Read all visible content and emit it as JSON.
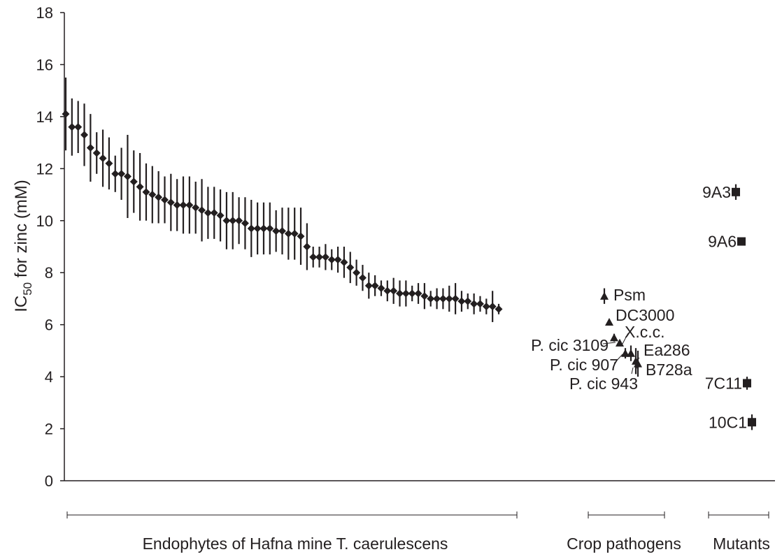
{
  "chart_data": {
    "type": "scatter",
    "ylabel": {
      "prefix": "IC",
      "sub": "50",
      "suffix": " for zinc (mM)"
    },
    "ylim": [
      0,
      18
    ],
    "yticks": [
      "0",
      "2",
      "4",
      "6",
      "8",
      "10",
      "12",
      "14",
      "16",
      "18"
    ],
    "grid": false,
    "groups": [
      {
        "label": "Endophytes of Hafna mine T. caerulescens"
      },
      {
        "label": "Crop pathogens"
      },
      {
        "label": "Mutants"
      }
    ],
    "series": [
      {
        "marker": "diamond",
        "values": [
          14.1,
          13.6,
          13.6,
          13.3,
          12.8,
          12.6,
          12.4,
          12.2,
          11.8,
          11.8,
          11.7,
          11.5,
          11.3,
          11.1,
          11.0,
          10.9,
          10.8,
          10.7,
          10.6,
          10.6,
          10.6,
          10.5,
          10.4,
          10.3,
          10.3,
          10.2,
          10.0,
          10.0,
          10.0,
          9.9,
          9.7,
          9.7,
          9.7,
          9.7,
          9.6,
          9.6,
          9.5,
          9.5,
          9.4,
          9.0,
          8.6,
          8.6,
          8.6,
          8.5,
          8.5,
          8.4,
          8.2,
          8.0,
          7.8,
          7.5,
          7.5,
          7.4,
          7.3,
          7.3,
          7.2,
          7.2,
          7.2,
          7.2,
          7.1,
          7.0,
          7.0,
          7.0,
          7.0,
          7.0,
          6.9,
          6.9,
          6.8,
          6.8,
          6.7,
          6.7,
          6.6
        ],
        "errors": [
          1.4,
          1.1,
          1.0,
          1.2,
          1.3,
          0.8,
          1.1,
          1.0,
          0.7,
          1.0,
          1.6,
          1.2,
          1.3,
          1.1,
          1.1,
          1.0,
          0.9,
          1.1,
          1.0,
          1.1,
          1.1,
          1.0,
          1.2,
          1.0,
          1.0,
          1.0,
          1.1,
          1.1,
          0.9,
          1.0,
          1.1,
          1.0,
          1.0,
          1.0,
          0.8,
          0.9,
          1.0,
          1.0,
          1.1,
          0.9,
          0.4,
          0.4,
          0.5,
          0.4,
          0.5,
          0.6,
          0.6,
          0.5,
          0.5,
          0.5,
          0.4,
          0.3,
          0.4,
          0.5,
          0.5,
          0.5,
          0.3,
          0.4,
          0.5,
          0.3,
          0.4,
          0.4,
          0.5,
          0.6,
          0.4,
          0.3,
          0.4,
          0.3,
          0.3,
          0.6,
          0.2
        ]
      },
      {
        "marker": "triangle",
        "points": [
          {
            "label": "Psm",
            "y": 7.1,
            "err": 0.3
          },
          {
            "label": "DC3000",
            "y": 6.1,
            "err": 0.1
          },
          {
            "label": "X.c.c.",
            "y": 5.5,
            "err": 0.15
          },
          {
            "label": "P. cic 3109",
            "y": 5.3,
            "err": 0.1
          },
          {
            "label": "P. cic 907",
            "y": 4.9,
            "err": 0.2
          },
          {
            "label": "Ea286",
            "y": 4.9,
            "err": 0.3
          },
          {
            "label": "B728a",
            "y": 4.6,
            "err": 0.5
          },
          {
            "label": "P. cic 943",
            "y": 4.5,
            "err": 0.5
          }
        ]
      },
      {
        "marker": "square",
        "points": [
          {
            "label": "9A3",
            "y": 11.1,
            "err": 0.3
          },
          {
            "label": "9A6",
            "y": 9.2,
            "err": 0.1
          },
          {
            "label": "7C11",
            "y": 3.75,
            "err": 0.25
          },
          {
            "label": "10C1",
            "y": 2.25,
            "err": 0.3
          }
        ]
      }
    ]
  }
}
